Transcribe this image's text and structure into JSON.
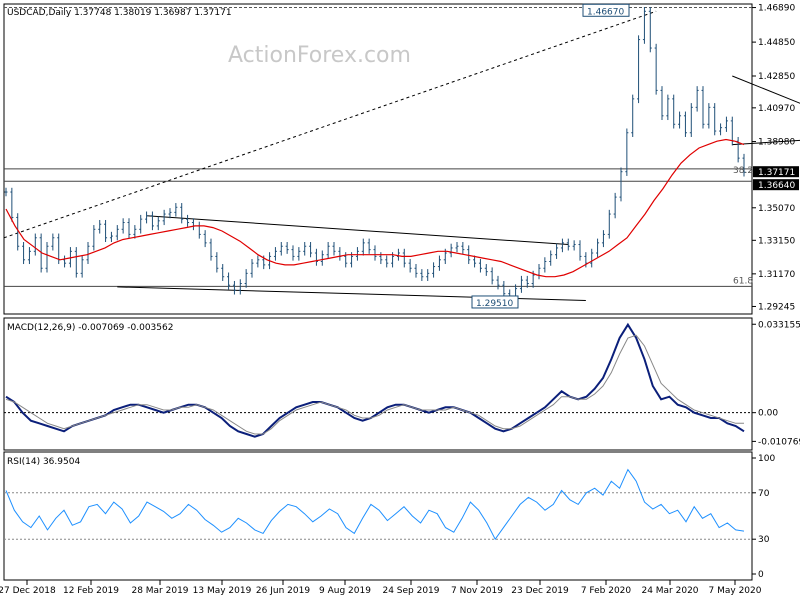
{
  "header": {
    "title": "USDCAD,Daily  1.37748 1.38019 1.36987 1.37171"
  },
  "watermark": "ActionForex.com",
  "colors": {
    "price": "#1f4f77",
    "ma": "#e00000",
    "macd_main": "#0b1f7a",
    "macd_signal": "#888888",
    "rsi": "#1e90ff",
    "grid": "#bdbdbd",
    "frame": "#000000",
    "last_price_bg": "#000000"
  },
  "chart_data": [
    {
      "type": "line",
      "panel": "price",
      "x_tick_labels": [
        "27 Dec 2018",
        "12 Feb 2019",
        "28 Mar 2019",
        "13 May 2019",
        "26 Jun 2019",
        "9 Aug 2019",
        "24 Sep 2019",
        "7 Nov 2019",
        "23 Dec 2019",
        "7 Feb 2020",
        "24 Mar 2020",
        "7 May 2020"
      ],
      "ylim": [
        1.288,
        1.471
      ],
      "y_tick_labels": [
        "1.46890",
        "1.44850",
        "1.42850",
        "1.40970",
        "1.38980",
        "1.35070",
        "1.33150",
        "1.31170",
        "1.29245"
      ],
      "y_tick_values": [
        1.4689,
        1.4485,
        1.4285,
        1.4097,
        1.3898,
        1.3507,
        1.3315,
        1.3117,
        1.29245
      ],
      "price_series": [
        1.36,
        1.345,
        1.328,
        1.32,
        1.325,
        1.333,
        1.315,
        1.328,
        1.333,
        1.32,
        1.318,
        1.325,
        1.312,
        1.32,
        1.328,
        1.338,
        1.341,
        1.333,
        1.334,
        1.338,
        1.342,
        1.335,
        1.338,
        1.344,
        1.346,
        1.34,
        1.343,
        1.347,
        1.348,
        1.351,
        1.344,
        1.342,
        1.34,
        1.335,
        1.33,
        1.322,
        1.315,
        1.31,
        1.305,
        1.302,
        1.306,
        1.312,
        1.318,
        1.32,
        1.317,
        1.322,
        1.325,
        1.328,
        1.326,
        1.322,
        1.325,
        1.328,
        1.324,
        1.319,
        1.323,
        1.328,
        1.325,
        1.322,
        1.318,
        1.322,
        1.325,
        1.33,
        1.326,
        1.322,
        1.32,
        1.318,
        1.322,
        1.324,
        1.318,
        1.315,
        1.312,
        1.31,
        1.312,
        1.316,
        1.32,
        1.324,
        1.327,
        1.328,
        1.326,
        1.32,
        1.318,
        1.315,
        1.313,
        1.308,
        1.305,
        1.3,
        1.298,
        1.303,
        1.308,
        1.306,
        1.311,
        1.315,
        1.319,
        1.323,
        1.327,
        1.33,
        1.328,
        1.329,
        1.322,
        1.318,
        1.324,
        1.33,
        1.335,
        1.347,
        1.357,
        1.372,
        1.395,
        1.415,
        1.45,
        1.4667,
        1.445,
        1.42,
        1.405,
        1.415,
        1.4,
        1.405,
        1.395,
        1.41,
        1.42,
        1.4,
        1.41,
        1.396,
        1.398,
        1.402,
        1.39,
        1.38,
        1.3717
      ],
      "ma_series": [
        1.35,
        1.34,
        1.332,
        1.328,
        1.324,
        1.322,
        1.32,
        1.321,
        1.322,
        1.323,
        1.325,
        1.327,
        1.33,
        1.332,
        1.333,
        1.334,
        1.335,
        1.336,
        1.337,
        1.338,
        1.339,
        1.34,
        1.34,
        1.339,
        1.337,
        1.334,
        1.331,
        1.327,
        1.323,
        1.32,
        1.318,
        1.317,
        1.317,
        1.318,
        1.319,
        1.32,
        1.321,
        1.322,
        1.323,
        1.323,
        1.323,
        1.323,
        1.323,
        1.323,
        1.322,
        1.322,
        1.323,
        1.324,
        1.325,
        1.325,
        1.324,
        1.323,
        1.322,
        1.321,
        1.32,
        1.319,
        1.317,
        1.315,
        1.313,
        1.311,
        1.31,
        1.31,
        1.311,
        1.313,
        1.316,
        1.319,
        1.322,
        1.325,
        1.329,
        1.333,
        1.34,
        1.347,
        1.355,
        1.362,
        1.37,
        1.377,
        1.382,
        1.386,
        1.388,
        1.39,
        1.391,
        1.39,
        1.388
      ],
      "ma_start_index": 0,
      "annotations": [
        {
          "label": "1.46670",
          "value": 1.4667
        },
        {
          "label": "1.29510",
          "value": 1.2951
        },
        {
          "label": "38.2",
          "value": 1.3737
        },
        {
          "label": "61.8",
          "value": 1.3043
        }
      ],
      "right_labels": [
        {
          "label": "1.37171",
          "value": 1.37171,
          "style": "inverse"
        },
        {
          "label": "1.36640",
          "value": 1.3664,
          "style": "normal"
        }
      ],
      "horizontal_lines": [
        1.3737,
        1.3664,
        1.3043,
        1.4689
      ],
      "trendlines": [
        {
          "from": [
            0,
            1.346
          ],
          "to": [
            110,
            1.4667
          ],
          "style": "dotted"
        },
        {
          "from": [
            0,
            1.346
          ],
          "to": [
            110,
            1.4667
          ],
          "style": "dotted"
        }
      ]
    },
    {
      "type": "line",
      "panel": "macd",
      "title": "MACD(12,26,9) -0.007069 -0.003562",
      "ylim": [
        -0.014,
        0.0355
      ],
      "y_tick_labels": [
        "0.033155",
        "0.00",
        "-0.010769"
      ],
      "y_tick_values": [
        0.033155,
        0.0,
        -0.010769
      ],
      "series": [
        {
          "name": "MACD",
          "values": [
            0.006,
            0.004,
            0.0,
            -0.003,
            -0.004,
            -0.005,
            -0.006,
            -0.007,
            -0.005,
            -0.004,
            -0.003,
            -0.002,
            -0.001,
            0.001,
            0.002,
            0.003,
            0.003,
            0.002,
            0.001,
            0.0,
            0.001,
            0.002,
            0.003,
            0.003,
            0.002,
            0.0,
            -0.002,
            -0.005,
            -0.007,
            -0.008,
            -0.009,
            -0.008,
            -0.005,
            -0.002,
            0.0,
            0.002,
            0.003,
            0.004,
            0.004,
            0.003,
            0.002,
            0.0,
            -0.002,
            -0.003,
            -0.002,
            0.0,
            0.002,
            0.003,
            0.003,
            0.002,
            0.001,
            0.0,
            0.001,
            0.002,
            0.002,
            0.001,
            0.0,
            -0.002,
            -0.004,
            -0.006,
            -0.007,
            -0.006,
            -0.004,
            -0.002,
            0.0,
            0.002,
            0.005,
            0.008,
            0.006,
            0.005,
            0.006,
            0.009,
            0.013,
            0.02,
            0.028,
            0.033,
            0.028,
            0.02,
            0.01,
            0.005,
            0.006,
            0.003,
            0.002,
            0.0,
            -0.001,
            -0.002,
            -0.002,
            -0.004,
            -0.005,
            -0.007
          ]
        },
        {
          "name": "Signal",
          "values": [
            0.005,
            0.004,
            0.002,
            0.0,
            -0.002,
            -0.004,
            -0.005,
            -0.006,
            -0.005,
            -0.004,
            -0.003,
            -0.002,
            -0.001,
            0.0,
            0.001,
            0.002,
            0.003,
            0.003,
            0.002,
            0.001,
            0.001,
            0.002,
            0.002,
            0.003,
            0.002,
            0.001,
            -0.001,
            -0.003,
            -0.005,
            -0.007,
            -0.008,
            -0.008,
            -0.006,
            -0.003,
            -0.001,
            0.001,
            0.002,
            0.003,
            0.004,
            0.003,
            0.002,
            0.001,
            -0.001,
            -0.002,
            -0.002,
            -0.001,
            0.001,
            0.002,
            0.003,
            0.002,
            0.001,
            0.001,
            0.001,
            0.001,
            0.002,
            0.001,
            0.0,
            -0.001,
            -0.003,
            -0.005,
            -0.006,
            -0.006,
            -0.005,
            -0.003,
            -0.001,
            0.001,
            0.003,
            0.006,
            0.006,
            0.005,
            0.005,
            0.007,
            0.01,
            0.015,
            0.022,
            0.028,
            0.029,
            0.025,
            0.018,
            0.011,
            0.008,
            0.005,
            0.003,
            0.001,
            0.0,
            -0.001,
            -0.002,
            -0.003,
            -0.004,
            -0.004
          ]
        }
      ]
    },
    {
      "type": "line",
      "panel": "rsi",
      "title": "RSI(14) 36.9504",
      "ylim": [
        0,
        100
      ],
      "y_tick_labels": [
        "100",
        "70",
        "30",
        "0"
      ],
      "y_tick_values": [
        100,
        70,
        30,
        0
      ],
      "series": [
        {
          "name": "RSI",
          "values": [
            72,
            55,
            45,
            40,
            50,
            38,
            48,
            55,
            42,
            45,
            58,
            60,
            52,
            62,
            56,
            44,
            50,
            62,
            58,
            54,
            48,
            52,
            60,
            55,
            47,
            42,
            36,
            40,
            48,
            44,
            38,
            35,
            46,
            54,
            60,
            58,
            52,
            45,
            50,
            56,
            52,
            40,
            35,
            48,
            60,
            55,
            46,
            52,
            58,
            50,
            44,
            55,
            52,
            40,
            36,
            48,
            62,
            55,
            44,
            30,
            40,
            50,
            60,
            66,
            62,
            55,
            60,
            72,
            64,
            60,
            70,
            74,
            68,
            80,
            74,
            90,
            80,
            62,
            56,
            60,
            52,
            55,
            45,
            58,
            48,
            52,
            40,
            44,
            38,
            37
          ]
        }
      ]
    }
  ]
}
